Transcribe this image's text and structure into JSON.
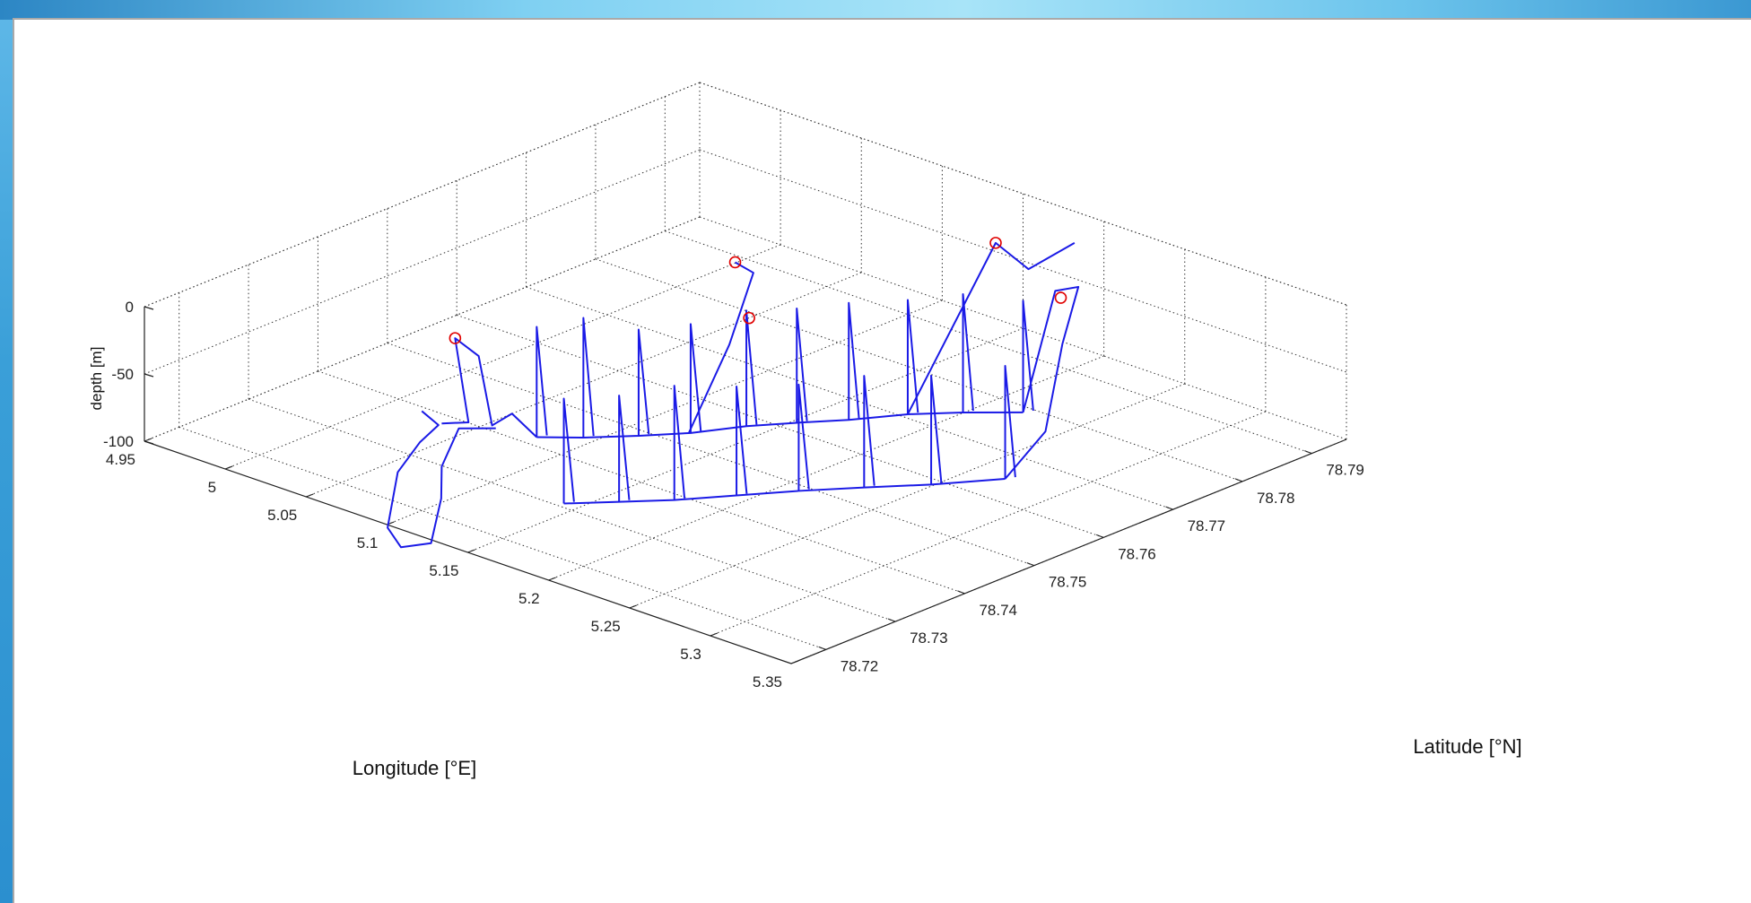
{
  "chart_data": {
    "type": "line3d",
    "title": "",
    "xlabel": "Longitude [°E]",
    "ylabel": "Latitude [°N]",
    "zlabel": "depth [m]",
    "xlim": [
      4.95,
      5.35
    ],
    "ylim": [
      78.715,
      78.795
    ],
    "zlim": [
      -100,
      0
    ],
    "x_ticks": [
      "4.95",
      "5",
      "5.05",
      "5.1",
      "5.15",
      "5.2",
      "5.25",
      "5.3",
      "5.35"
    ],
    "y_ticks": [
      "78.72",
      "78.73",
      "78.74",
      "78.75",
      "78.76",
      "78.77",
      "78.78",
      "78.79"
    ],
    "z_ticks": [
      "0",
      "-50",
      "-100"
    ],
    "grid": true,
    "line_color": "#1a1ae6",
    "marker_color": "#e00000",
    "profiles": [
      {
        "lon": 5.081,
        "lat": 78.741,
        "depth_min": -15
      },
      {
        "lon": 5.097,
        "lat": 78.744,
        "depth_min": -8
      },
      {
        "lon": 5.114,
        "lat": 78.748,
        "depth_min": -18
      },
      {
        "lon": 5.129,
        "lat": 78.752,
        "depth_min": -16
      },
      {
        "lon": 5.142,
        "lat": 78.757,
        "depth_min": -11
      },
      {
        "lon": 5.156,
        "lat": 78.761,
        "depth_min": -12
      },
      {
        "lon": 5.171,
        "lat": 78.765,
        "depth_min": -10
      },
      {
        "lon": 5.186,
        "lat": 78.77,
        "depth_min": -12
      },
      {
        "lon": 5.203,
        "lat": 78.774,
        "depth_min": -9
      },
      {
        "lon": 5.223,
        "lat": 78.778,
        "depth_min": -14
      },
      {
        "lon": 5.145,
        "lat": 78.73,
        "depth_min": -19
      },
      {
        "lon": 5.162,
        "lat": 78.734,
        "depth_min": -18
      },
      {
        "lon": 5.179,
        "lat": 78.738,
        "depth_min": -12
      },
      {
        "lon": 5.196,
        "lat": 78.743,
        "depth_min": -16
      },
      {
        "lon": 5.213,
        "lat": 78.748,
        "depth_min": -18
      },
      {
        "lon": 5.232,
        "lat": 78.753,
        "depth_min": -14
      },
      {
        "lon": 5.252,
        "lat": 78.758,
        "depth_min": -16
      },
      {
        "lon": 5.272,
        "lat": 78.764,
        "depth_min": -13
      }
    ],
    "markers": [
      {
        "lon": 5.052,
        "lat": 78.736,
        "depth": -25
      },
      {
        "lon": 5.105,
        "lat": 78.764,
        "depth": -5
      },
      {
        "lon": 5.148,
        "lat": 78.756,
        "depth": -12
      },
      {
        "lon": 5.176,
        "lat": 78.785,
        "depth": -5
      },
      {
        "lon": 5.242,
        "lat": 78.779,
        "depth": -6
      }
    ]
  }
}
